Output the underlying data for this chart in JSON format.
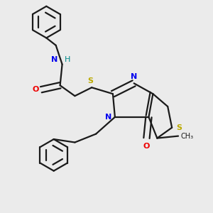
{
  "background_color": "#ebebeb",
  "bond_color": "#1a1a1a",
  "N_color": "#0000ee",
  "O_color": "#ee0000",
  "S_color": "#bbaa00",
  "H_color": "#008888",
  "line_width": 1.6,
  "figsize": [
    3.0,
    3.0
  ],
  "dpi": 100,
  "xlim": [
    0,
    10
  ],
  "ylim": [
    0,
    10
  ]
}
